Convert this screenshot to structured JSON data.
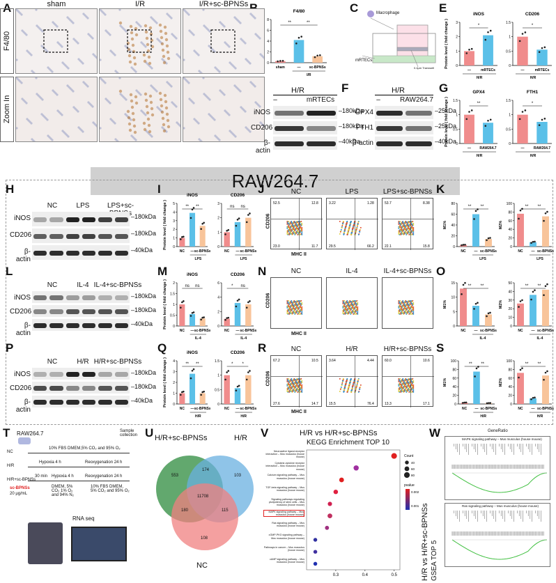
{
  "panels": {
    "A": {
      "label": "A",
      "columns": [
        "sham",
        "I/R",
        "I/R+sc-BPNSs"
      ],
      "rows": [
        "F4/80",
        "Zoom In"
      ]
    },
    "B": {
      "label": "B",
      "title": "F4/80",
      "ylabel": "Relative area ( % )",
      "xlabels": [
        "sham",
        "—",
        "sc-BPNSs"
      ],
      "group": "I/R",
      "sig": [
        "**",
        "**"
      ]
    },
    "C": {
      "label": "C",
      "macrophage": "Macrophage",
      "mrtecs": "mRTECs",
      "transwell": "0.4μm Transwell"
    },
    "D": {
      "label": "D",
      "header": "H/R",
      "cols": [
        "–",
        "mRTECs"
      ],
      "rows": [
        "iNOS",
        "CD206",
        "β-actin"
      ],
      "mw": [
        "180kDa",
        "180kDa",
        "40kDa"
      ]
    },
    "E": {
      "label": "E",
      "titles": [
        "iNOS",
        "CD206"
      ],
      "ylabel": "Protein level ( fold change )",
      "xlabels": [
        "—",
        "mRTECs"
      ],
      "group": "H/R",
      "sig": [
        "*",
        "*"
      ]
    },
    "F": {
      "label": "F",
      "header": "H/R",
      "cols": [
        "–",
        "RAW264.7"
      ],
      "rows": [
        "GPX4",
        "FTH1",
        "β-actin"
      ],
      "mw": [
        "25kDa",
        "25kDa",
        "40kDa"
      ]
    },
    "G": {
      "label": "G",
      "titles": [
        "GPX4",
        "FTH1"
      ],
      "ylabel": "Protein level ( fold change )",
      "xlabels": [
        "—",
        "RAW264.7"
      ],
      "group": "H/R",
      "sig": [
        "**",
        "*"
      ]
    },
    "banner": "RAW264.7",
    "H": {
      "label": "H",
      "cols": [
        "NC",
        "LPS",
        "LPS+sc-BPNSs"
      ],
      "rows": [
        "iNOS",
        "CD206",
        "β-actin"
      ],
      "mw": [
        "180kDa",
        "180kDa",
        "40kDa"
      ]
    },
    "I": {
      "label": "I",
      "titles": [
        "iNOS",
        "CD206"
      ],
      "ylabel": "Protein level ( fold change )",
      "xlabels": [
        "NC",
        "—",
        "sc-BPNSs"
      ],
      "group": "LPS",
      "sig": [
        "**",
        "**",
        "ns",
        "ns"
      ]
    },
    "J": {
      "label": "J",
      "cols": [
        "NC",
        "LPS",
        "LPS+sc-BPNSs"
      ],
      "ylabel": "CD206",
      "xlabel": "MHC II",
      "quads": [
        [
          "52.5",
          "12.8",
          "23.0",
          "11.7"
        ],
        [
          "3.22",
          "1.28",
          "29.5",
          "66.2"
        ],
        [
          "53.7",
          "8.38",
          "22.1",
          "15.8"
        ]
      ]
    },
    "K": {
      "label": "K",
      "ylabels": [
        "M1%",
        "M2%"
      ],
      "xlabels": [
        "NC",
        "—",
        "sc-BPNSs"
      ],
      "group": "LPS",
      "sig": [
        "**",
        "**",
        "**",
        "**"
      ]
    },
    "L": {
      "label": "L",
      "cols": [
        "NC",
        "IL-4",
        "IL-4+sc-BPNSs"
      ],
      "rows": [
        "iNOS",
        "CD206",
        "β-actin"
      ],
      "mw": [
        "180kDa",
        "180kDa",
        "40kDa"
      ]
    },
    "M": {
      "label": "M",
      "titles": [
        "iNOS",
        "CD206"
      ],
      "ylabel": "Protein level ( fold change )",
      "xlabels": [
        "NC",
        "—",
        "sc-BPNSs"
      ],
      "group": "IL-4",
      "sig": [
        "ns",
        "ns",
        "*",
        "ns"
      ]
    },
    "N": {
      "label": "N",
      "cols": [
        "NC",
        "IL-4",
        "IL-4+sc-BPNSs"
      ],
      "ylabel": "CD206",
      "xlabel": "MHC II"
    },
    "O": {
      "label": "O",
      "ylabels": [
        "M1%",
        "M2%"
      ],
      "xlabels": [
        "NC",
        "—",
        "sc-BPNSs"
      ],
      "group": "IL-4",
      "sig": [
        "**",
        "**",
        "**",
        "**"
      ]
    },
    "P": {
      "label": "P",
      "cols": [
        "NC",
        "H/R",
        "H/R+sc-BPNSs"
      ],
      "rows": [
        "iNOS",
        "CD206",
        "β-actin"
      ],
      "mw": [
        "180kDa",
        "180kDa",
        "40kDa"
      ]
    },
    "Q": {
      "label": "Q",
      "titles": [
        "iNOS",
        "CD206"
      ],
      "ylabel": "Protein level ( fold change )",
      "xlabels": [
        "NC",
        "—",
        "sc-BPNSs"
      ],
      "group": "H/R",
      "sig": [
        "**",
        "**",
        "*",
        "*"
      ]
    },
    "R": {
      "label": "R",
      "cols": [
        "NC",
        "H/R",
        "H/R+sc-BPNSs"
      ],
      "ylabel": "CD206",
      "xlabel": "MHC II",
      "quads": [
        [
          "67.2",
          "10.5",
          "27.6",
          "14.7"
        ],
        [
          "3.64",
          "4.44",
          "15.5",
          "76.4"
        ],
        [
          "60.0",
          "10.6",
          "13.3",
          "17.1"
        ]
      ]
    },
    "S": {
      "label": "S",
      "ylabels": [
        "M1%",
        "M2%"
      ],
      "xlabels": [
        "NC",
        "—",
        "sc-BPNSs"
      ],
      "group": "H/R",
      "sig": [
        "**",
        "**",
        "**",
        "**"
      ]
    },
    "T": {
      "label": "T",
      "cell": "RAW264.7",
      "collection": "Sample collection",
      "rows": [
        "NC",
        "H/R",
        "H/R+sc-BPNSs"
      ],
      "nc_text": "10% FBS DMEM,5% CO₂ and 95% O₂",
      "hypoxia": "Hypoxia 4 h",
      "reoxy": "Reoxygenation 24 h",
      "pre": "30 min",
      "drug": "sc-BPNSs",
      "dose": "20 μg/mL",
      "hyp_cond": "DMEM, 5% CO₂ 1% O₂ and 94% N₂",
      "reo_cond": "10% FBS DMEM, 5% CO₂ and 95% O₂",
      "rnaseq": "RNA seq"
    },
    "U": {
      "label": "U",
      "sets": [
        "H/R+sc-BPNSs",
        "H/R",
        "NC"
      ],
      "counts": [
        "553",
        "174",
        "103",
        "11708",
        "180",
        "115",
        "108"
      ]
    },
    "V": {
      "label": "V",
      "title": "H/R vs H/R+sc-BPNSs",
      "subtitle": "KEGG Enrichment TOP 10",
      "terms": [
        "Neuroactive ligand-receptor interaction – Mus musculus (house mouse)",
        "Cytokine-cytokine receptor interaction – Mus musculus (house mouse)",
        "Calcium signaling pathway – Mus musculus (house mouse)",
        "TGF-beta signaling pathway – Mus musculus (house mouse)",
        "Signaling pathways regulating pluripotency of stem cells – Mus musculus (house mouse)",
        "MAPK signaling pathway – Mus musculus (house mouse)",
        "Ras signaling pathway – Mus musculus (house mouse)",
        "cGMP-PKG signaling pathway – Mus musculus (house mouse)",
        "Pathways in cancer – Mus musculus (house mouse)",
        "cAMP signaling pathway – Mus musculus (house mouse)"
      ],
      "xticks": [
        "0.3",
        "0.4",
        "0.5"
      ],
      "legend_count": "Count",
      "count_vals": [
        "40",
        "60",
        "80"
      ],
      "legend_p": "pvalue",
      "p_vals": [
        "0.002",
        "0.001"
      ]
    },
    "W": {
      "label": "W",
      "header": "GeneRatio",
      "plots": [
        "MAPK signaling pathway – Mus musculus (house mouse)",
        "Ras signaling pathway – Mus musculus (house mouse)"
      ],
      "side1": "H/R vs H/R+sc-BPNSs",
      "side2": "GSEA TOP 5"
    }
  },
  "chart_data": [
    {
      "type": "bar",
      "panel": "B",
      "title": "F4/80",
      "categories": [
        "sham",
        "I/R",
        "I/R+sc-BPNSs"
      ],
      "values": [
        0.3,
        4.2,
        1.2
      ],
      "ylim": [
        0,
        8
      ],
      "yticks": [
        0,
        2,
        4,
        6,
        8
      ],
      "colors": [
        "#f08c8c",
        "#5bc0e8",
        "#f8c49a"
      ]
    },
    {
      "type": "bar",
      "panel": "E-iNOS",
      "title": "iNOS",
      "categories": [
        "—",
        "mRTECs"
      ],
      "values": [
        1.0,
        2.1
      ],
      "ylim": [
        0,
        3
      ],
      "yticks": [
        0,
        1,
        2,
        3
      ],
      "colors": [
        "#f08c8c",
        "#5bc0e8"
      ]
    },
    {
      "type": "bar",
      "panel": "E-CD206",
      "title": "CD206",
      "categories": [
        "—",
        "mRTECs"
      ],
      "values": [
        1.0,
        0.55
      ],
      "ylim": [
        0,
        1.5
      ],
      "yticks": [
        0,
        0.5,
        1.0,
        1.5
      ],
      "colors": [
        "#f08c8c",
        "#5bc0e8"
      ]
    },
    {
      "type": "bar",
      "panel": "G-GPX4",
      "title": "GPX4",
      "categories": [
        "—",
        "RAW264.7"
      ],
      "values": [
        1.0,
        0.72
      ],
      "ylim": [
        0,
        1.5
      ],
      "yticks": [
        0,
        0.5,
        1.0,
        1.5
      ],
      "colors": [
        "#f08c8c",
        "#5bc0e8"
      ]
    },
    {
      "type": "bar",
      "panel": "G-FTH1",
      "title": "FTH1",
      "categories": [
        "—",
        "RAW264.7"
      ],
      "values": [
        1.0,
        0.75
      ],
      "ylim": [
        0,
        1.5
      ],
      "yticks": [
        0,
        0.5,
        1.0,
        1.5
      ],
      "colors": [
        "#f08c8c",
        "#5bc0e8"
      ]
    },
    {
      "type": "bar",
      "panel": "I-iNOS",
      "title": "iNOS",
      "categories": [
        "NC",
        "LPS",
        "LPS+sc-BPNSs"
      ],
      "values": [
        1.0,
        3.9,
        2.4
      ],
      "ylim": [
        0,
        5
      ],
      "yticks": [
        0,
        1,
        2,
        3,
        4,
        5
      ],
      "colors": [
        "#f08c8c",
        "#5bc0e8",
        "#f8c49a"
      ]
    },
    {
      "type": "bar",
      "panel": "I-CD206",
      "title": "CD206",
      "categories": [
        "NC",
        "LPS",
        "LPS+sc-BPNSs"
      ],
      "values": [
        1.0,
        1.7,
        2.0
      ],
      "ylim": [
        0,
        3
      ],
      "yticks": [
        0,
        1,
        2,
        3
      ],
      "colors": [
        "#f08c8c",
        "#5bc0e8",
        "#f8c49a"
      ]
    },
    {
      "type": "bar",
      "panel": "K-M1",
      "ylabel": "M1%",
      "categories": [
        "NC",
        "LPS",
        "LPS+sc-BPNSs"
      ],
      "values": [
        3,
        60,
        14
      ],
      "ylim": [
        0,
        80
      ],
      "yticks": [
        0,
        20,
        40,
        60,
        80
      ],
      "colors": [
        "#f08c8c",
        "#5bc0e8",
        "#f8c49a"
      ]
    },
    {
      "type": "bar",
      "panel": "K-M2",
      "ylabel": "M2%",
      "categories": [
        "NC",
        "LPS",
        "LPS+sc-BPNSs"
      ],
      "values": [
        76,
        10,
        70
      ],
      "ylim": [
        0,
        100
      ],
      "yticks": [
        0,
        20,
        40,
        60,
        80,
        100
      ],
      "colors": [
        "#f08c8c",
        "#5bc0e8",
        "#f8c49a"
      ]
    },
    {
      "type": "bar",
      "panel": "M-iNOS",
      "title": "iNOS",
      "categories": [
        "NC",
        "IL-4",
        "IL-4+sc-BPNSs"
      ],
      "values": [
        1.0,
        0.55,
        0.35
      ],
      "ylim": [
        0,
        2.0
      ],
      "yticks": [
        0,
        0.5,
        1.0,
        1.5,
        2.0
      ],
      "colors": [
        "#f08c8c",
        "#5bc0e8",
        "#f8c49a"
      ]
    },
    {
      "type": "bar",
      "panel": "M-CD206",
      "title": "CD206",
      "categories": [
        "NC",
        "IL-4",
        "IL-4+sc-BPNSs"
      ],
      "values": [
        1.0,
        3.2,
        3.0
      ],
      "ylim": [
        0,
        6
      ],
      "yticks": [
        0,
        2,
        4,
        6
      ],
      "colors": [
        "#f08c8c",
        "#5bc0e8",
        "#f8c49a"
      ]
    },
    {
      "type": "bar",
      "panel": "O-M1",
      "ylabel": "M1%",
      "categories": [
        "NC",
        "IL-4",
        "IL-4+sc-BPNSs"
      ],
      "values": [
        13,
        7,
        4
      ],
      "ylim": [
        0,
        15
      ],
      "yticks": [
        0,
        5,
        10,
        15
      ],
      "colors": [
        "#f08c8c",
        "#5bc0e8",
        "#f8c49a"
      ]
    },
    {
      "type": "bar",
      "panel": "O-M2",
      "ylabel": "M2%",
      "categories": [
        "NC",
        "IL-4",
        "IL-4+sc-BPNSs"
      ],
      "values": [
        26,
        36,
        42
      ],
      "ylim": [
        0,
        50
      ],
      "yticks": [
        0,
        10,
        20,
        30,
        40,
        50
      ],
      "colors": [
        "#f08c8c",
        "#5bc0e8",
        "#f8c49a"
      ]
    },
    {
      "type": "bar",
      "panel": "Q-iNOS",
      "title": "iNOS",
      "categories": [
        "NC",
        "H/R",
        "H/R+sc-BPNSs"
      ],
      "values": [
        1.0,
        2.8,
        1.0
      ],
      "ylim": [
        0,
        4
      ],
      "yticks": [
        0,
        1,
        2,
        3,
        4
      ],
      "colors": [
        "#f08c8c",
        "#5bc0e8",
        "#f8c49a"
      ]
    },
    {
      "type": "bar",
      "panel": "Q-CD206",
      "title": "CD206",
      "categories": [
        "NC",
        "H/R",
        "H/R+sc-BPNSs"
      ],
      "values": [
        1.0,
        0.55,
        1.0
      ],
      "ylim": [
        0,
        1.5
      ],
      "yticks": [
        0,
        0.5,
        1.0,
        1.5
      ],
      "colors": [
        "#f08c8c",
        "#5bc0e8",
        "#f8c49a"
      ]
    },
    {
      "type": "bar",
      "panel": "S-M1",
      "ylabel": "M1%",
      "categories": [
        "NC",
        "H/R",
        "H/R+sc-BPNSs"
      ],
      "values": [
        3,
        75,
        2
      ],
      "ylim": [
        0,
        100
      ],
      "yticks": [
        0,
        20,
        40,
        60,
        80,
        100
      ],
      "colors": [
        "#f08c8c",
        "#5bc0e8",
        "#f8c49a"
      ]
    },
    {
      "type": "bar",
      "panel": "S-M2",
      "ylabel": "M2%",
      "categories": [
        "NC",
        "H/R",
        "H/R+sc-BPNSs"
      ],
      "values": [
        72,
        13,
        66
      ],
      "ylim": [
        0,
        100
      ],
      "yticks": [
        0,
        20,
        40,
        60,
        80,
        100
      ],
      "colors": [
        "#f08c8c",
        "#5bc0e8",
        "#f8c49a"
      ]
    },
    {
      "type": "scatter",
      "panel": "V",
      "title": "KEGG Enrichment TOP 10",
      "x": [
        0.5,
        0.37,
        0.32,
        0.3,
        0.28,
        0.28,
        0.27,
        0.23,
        0.23,
        0.23
      ],
      "counts": [
        80,
        70,
        60,
        55,
        50,
        60,
        45,
        40,
        40,
        40
      ],
      "xlim": [
        0.2,
        0.52
      ],
      "colors": [
        "#e02020",
        "#a030a0",
        "#e02020",
        "#e02040",
        "#d02050",
        "#c03060",
        "#a03080",
        "#3030a0",
        "#4030a0",
        "#2030b0"
      ]
    }
  ]
}
